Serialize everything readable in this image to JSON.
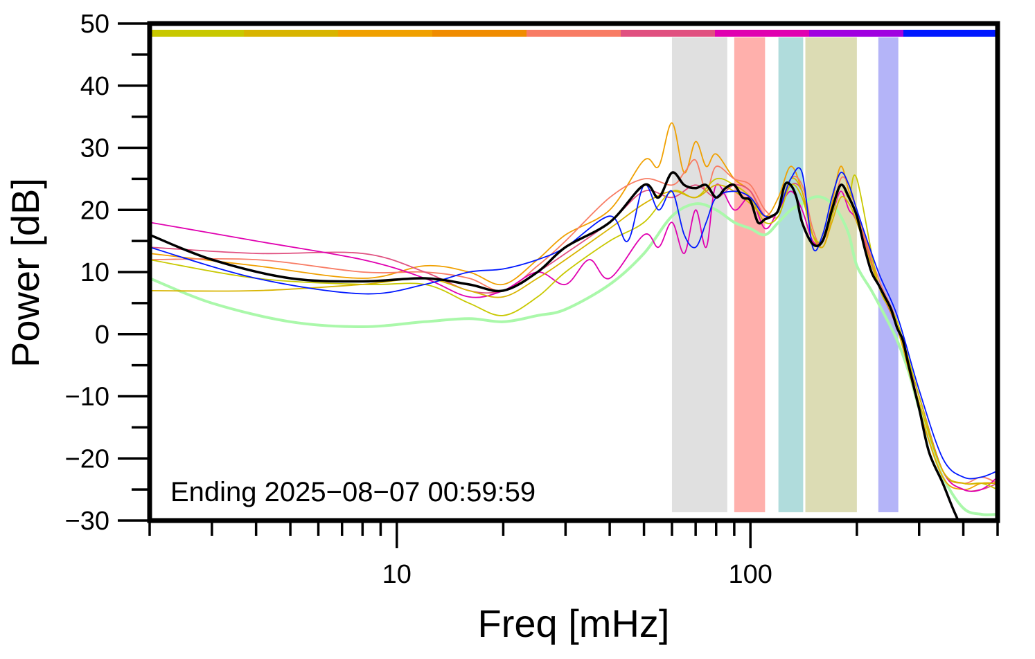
{
  "chart_data": {
    "type": "line",
    "xlabel": "Freq [mHz]",
    "ylabel": "Power [dB]",
    "x_scale": "log",
    "xlim": [
      2,
      500
    ],
    "ylim": [
      -30,
      50
    ],
    "x_ticks": [
      10,
      100
    ],
    "y_ticks": [
      50,
      40,
      30,
      20,
      10,
      0,
      -10,
      -20,
      -30
    ],
    "y_tick_labels": [
      "50",
      "40",
      "30",
      "20",
      "10",
      "0",
      "−10",
      "−20",
      "−30"
    ],
    "grid": false,
    "annotation": "Ending 2025−08−07 00:59:59",
    "top_color_bar": [
      "#c8c800",
      "#d8b400",
      "#f0a000",
      "#f08c00",
      "#f87c64",
      "#e05080",
      "#e000b0",
      "#a000e0",
      "#0018ff"
    ],
    "bands": [
      {
        "x0": 60,
        "x1": 86,
        "color": "#e0e0e0"
      },
      {
        "x0": 90,
        "x1": 110,
        "color": "#ffb0ac"
      },
      {
        "x0": 120,
        "x1": 141,
        "color": "#b0dcdc"
      },
      {
        "x0": 143,
        "x1": 200,
        "color": "#dcdcb4"
      },
      {
        "x0": 230,
        "x1": 262,
        "color": "#b4b4f8"
      }
    ],
    "series": [
      {
        "color": "#000000",
        "width": 3.5,
        "x": [
          2,
          3,
          5,
          8,
          12,
          16,
          20,
          25,
          30,
          40,
          50,
          55,
          60,
          65,
          70,
          75,
          80,
          85,
          90,
          95,
          100,
          105,
          110,
          115,
          120,
          125,
          130,
          135,
          140,
          150,
          160,
          170,
          180,
          190,
          200,
          210,
          220,
          230,
          240,
          250,
          260,
          270,
          280,
          300,
          320,
          350,
          380,
          420,
          460,
          500
        ],
        "y": [
          16,
          12,
          9,
          8.5,
          9,
          8,
          7,
          10,
          14,
          18,
          24,
          22,
          26,
          24,
          23.5,
          24,
          22,
          23.5,
          24,
          22,
          21.5,
          18,
          18.5,
          19,
          20,
          24,
          24,
          22,
          18,
          14.5,
          15,
          20,
          24,
          22,
          19,
          14,
          10,
          8,
          6,
          4,
          1,
          -1,
          -5,
          -12,
          -19,
          -24,
          -29,
          -34,
          -35,
          -35
        ]
      },
      {
        "color": "#aaf8aa",
        "width": 4,
        "x": [
          2,
          3,
          5,
          8,
          12,
          16,
          20,
          25,
          30,
          40,
          50,
          60,
          70,
          80,
          90,
          100,
          110,
          120,
          130,
          140,
          150,
          160,
          170,
          180,
          190,
          200,
          220,
          240,
          260,
          280,
          300,
          320,
          350,
          400,
          450,
          500
        ],
        "y": [
          9,
          5,
          2,
          1.2,
          2,
          2.5,
          2,
          3,
          4,
          8,
          13,
          19,
          21,
          20,
          18,
          17,
          16,
          18,
          20,
          21,
          22,
          22,
          21,
          19,
          16,
          11,
          7,
          3,
          -1,
          -6,
          -12,
          -17,
          -23,
          -28,
          -29,
          -29
        ]
      },
      {
        "color": "#f0a000",
        "width": 1.8,
        "x": [
          2,
          4,
          8,
          12,
          16,
          20,
          25,
          30,
          40,
          50,
          55,
          60,
          65,
          70,
          75,
          80,
          90,
          100,
          110,
          120,
          130,
          140,
          150,
          160,
          170,
          180,
          190,
          200,
          230,
          260,
          300,
          350,
          400,
          450,
          500
        ],
        "y": [
          13,
          11,
          9,
          11,
          10,
          8,
          12,
          16,
          20,
          28,
          27,
          34,
          26,
          31,
          27,
          29,
          25,
          23,
          19,
          22,
          27,
          23,
          16,
          15,
          21,
          27,
          23,
          20,
          8,
          1,
          -12,
          -23,
          -25,
          -24,
          -24
        ]
      },
      {
        "color": "#f87c64",
        "width": 1.8,
        "x": [
          2,
          4,
          8,
          12,
          16,
          20,
          25,
          30,
          40,
          50,
          60,
          65,
          70,
          75,
          80,
          90,
          100,
          110,
          120,
          130,
          140,
          150,
          160,
          170,
          180,
          190,
          200,
          230,
          260,
          300,
          350,
          400,
          450,
          500
        ],
        "y": [
          12,
          12,
          10,
          10,
          9,
          7,
          11,
          15,
          22,
          25,
          24,
          26,
          28,
          23,
          27,
          25,
          24,
          20,
          19,
          25,
          24,
          17,
          14,
          19,
          25,
          24,
          20,
          9,
          2,
          -10,
          -22,
          -24,
          -23,
          -24
        ]
      },
      {
        "color": "#e05080",
        "width": 1.8,
        "x": [
          2,
          4,
          8,
          12,
          16,
          20,
          25,
          30,
          40,
          50,
          60,
          70,
          80,
          90,
          100,
          110,
          120,
          130,
          140,
          150,
          160,
          170,
          180,
          190,
          200,
          230,
          260,
          300,
          350,
          400,
          450,
          500
        ],
        "y": [
          14,
          13,
          13,
          10,
          7,
          7,
          10,
          13,
          18,
          23,
          22,
          24,
          22,
          24,
          23,
          19,
          20,
          24,
          23,
          16,
          15,
          20,
          24,
          22,
          19,
          8,
          1,
          -10,
          -22,
          -25,
          -25,
          -24
        ]
      },
      {
        "color": "#e000b0",
        "width": 1.8,
        "x": [
          2,
          4,
          8,
          12,
          16,
          20,
          25,
          30,
          35,
          40,
          50,
          55,
          60,
          65,
          70,
          75,
          80,
          90,
          100,
          110,
          120,
          130,
          140,
          150,
          160,
          170,
          180,
          190,
          200,
          230,
          260,
          300,
          350,
          400,
          450,
          500
        ],
        "y": [
          18,
          15,
          12,
          9,
          6,
          7,
          10,
          8,
          12,
          9,
          16,
          14,
          18,
          13,
          20,
          14,
          24,
          20,
          22,
          17,
          20,
          23,
          20,
          15,
          15,
          19,
          23,
          20,
          18,
          8,
          1,
          -10,
          -22,
          -25,
          -25,
          -23
        ]
      },
      {
        "color": "#c8c800",
        "width": 1.8,
        "x": [
          2,
          4,
          8,
          12,
          16,
          20,
          25,
          30,
          40,
          50,
          60,
          70,
          80,
          90,
          100,
          110,
          120,
          130,
          140,
          150,
          160,
          170,
          180,
          190,
          200,
          230,
          260,
          300,
          350,
          400,
          450,
          500
        ],
        "y": [
          12,
          9,
          8,
          8,
          5,
          3,
          6,
          10,
          15,
          18,
          23,
          22,
          25,
          24,
          22,
          18,
          19,
          24,
          22,
          16,
          15,
          19,
          24,
          22,
          25,
          8,
          2,
          -10,
          -22,
          -24,
          -24,
          -25
        ]
      },
      {
        "color": "#d8b400",
        "width": 1.8,
        "x": [
          2,
          4,
          8,
          12,
          16,
          20,
          25,
          30,
          40,
          50,
          60,
          70,
          80,
          90,
          100,
          110,
          120,
          130,
          140,
          150,
          160,
          170,
          180,
          190,
          200,
          230,
          260,
          300,
          350,
          400,
          450,
          500
        ],
        "y": [
          7,
          7,
          8,
          9,
          7,
          6,
          9,
          12,
          17,
          21,
          23,
          22,
          24,
          23,
          21,
          19,
          20,
          25,
          23,
          16,
          14,
          18,
          22,
          21,
          18,
          8,
          1,
          -11,
          -22,
          -24,
          -24,
          -24
        ]
      },
      {
        "color": "#0018ff",
        "width": 1.8,
        "x": [
          2,
          4,
          8,
          12,
          16,
          20,
          25,
          30,
          40,
          45,
          50,
          55,
          60,
          65,
          70,
          75,
          80,
          90,
          100,
          110,
          120,
          130,
          140,
          150,
          160,
          170,
          180,
          190,
          200,
          230,
          260,
          300,
          350,
          400,
          450,
          500
        ],
        "y": [
          14,
          9,
          6.5,
          8,
          10,
          10.5,
          12,
          14,
          19,
          15,
          24,
          20,
          23,
          16,
          14,
          18,
          22,
          23,
          22,
          19,
          20,
          25,
          26,
          14,
          16,
          22,
          26,
          24,
          20,
          10,
          3,
          -9,
          -20,
          -23,
          -23,
          -22
        ]
      }
    ]
  }
}
